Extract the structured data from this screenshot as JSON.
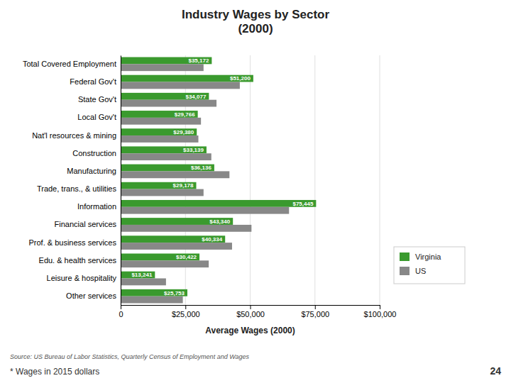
{
  "chart_data": {
    "type": "bar",
    "orientation": "horizontal",
    "title": "Industry Wages by Sector\n(2000)",
    "xlabel": "Average Wages (2000)",
    "source": "Source: US Bureau of Labor Statistics, Quarterly Census of Employment and Wages",
    "footnote": "* Wages in 2015 dollars",
    "page_number": "24",
    "categories": [
      "Total Covered Employment",
      "Federal Gov't",
      "State Gov't",
      "Local Gov't",
      "Nat'l resources & mining",
      "Construction",
      "Manufacturing",
      "Trade, trans., & utilities",
      "Information",
      "Financial services",
      "Prof. & business services",
      "Edu. & health services",
      "Leisure & hospitality",
      "Other services"
    ],
    "series": [
      {
        "name": "Virginia",
        "color": "#3a9a2e",
        "values": [
          35172,
          51200,
          34077,
          29766,
          29380,
          33139,
          36136,
          29178,
          75445,
          43340,
          40334,
          30422,
          13241,
          25753
        ],
        "value_labels": [
          "$35,172",
          "$51,200",
          "$34,077",
          "$29,766",
          "$29,380",
          "$33,139",
          "$36,136",
          "$29,178",
          "$75,445",
          "$43,340",
          "$40,334",
          "$30,422",
          "$13,241",
          "$25,753"
        ]
      },
      {
        "name": "US",
        "color": "#888888",
        "values": [
          32000,
          46000,
          37000,
          31000,
          30000,
          35000,
          42000,
          32000,
          65000,
          50500,
          43000,
          34000,
          17500,
          24000
        ]
      }
    ],
    "xlim": [
      0,
      100000
    ],
    "xticks": [
      0,
      {
        "value": 25000,
        "label": "$25,000"
      },
      {
        "value": 50000,
        "label": "$50,000"
      },
      {
        "value": 75000,
        "label": "$75,000"
      },
      {
        "value": 100000,
        "label": "$100,000"
      }
    ],
    "grid": true,
    "legend": "lower right",
    "data_labels": true
  }
}
